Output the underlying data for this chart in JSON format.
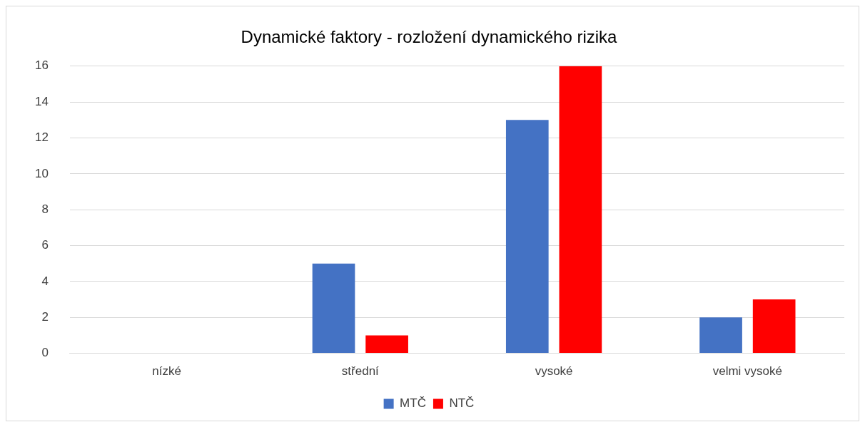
{
  "chart_data": {
    "type": "bar",
    "title": "Dynamické faktory - rozložení dynamického rizika",
    "categories": [
      "nízké",
      "střední",
      "vysoké",
      "velmi vysoké"
    ],
    "series": [
      {
        "name": "MTČ",
        "color": "#4472c4",
        "values": [
          0,
          5,
          13,
          2
        ]
      },
      {
        "name": "NTČ",
        "color": "#ff0000",
        "values": [
          0,
          1,
          16,
          3
        ]
      }
    ],
    "ylim": [
      0,
      16
    ],
    "yticks": [
      0,
      2,
      4,
      6,
      8,
      10,
      12,
      14,
      16
    ],
    "grid": "y",
    "legend": "bottom"
  }
}
